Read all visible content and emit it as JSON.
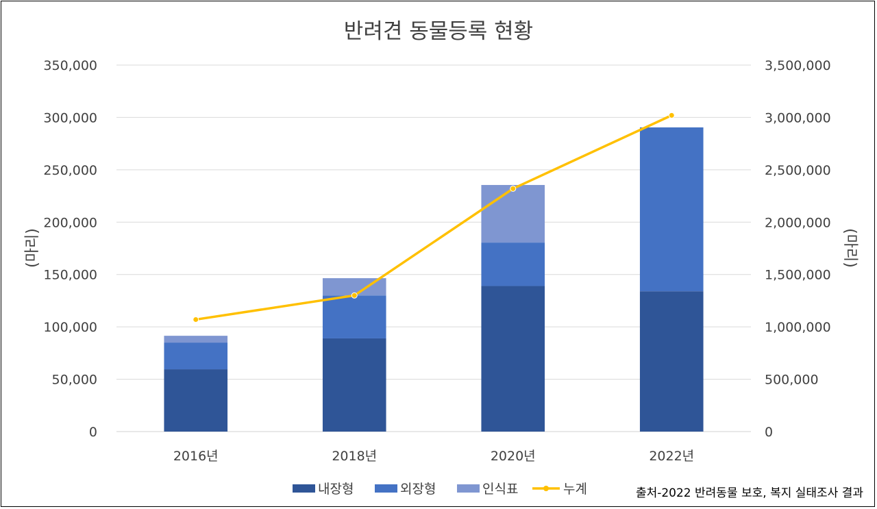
{
  "chart_data": {
    "type": "bar",
    "title": "반려견 동물등록 현황",
    "categories": [
      "2016년",
      "2018년",
      "2020년",
      "2022년"
    ],
    "ylabel": "(마리)",
    "y2label": "(마리)",
    "ylim": [
      0,
      350000
    ],
    "y2lim": [
      0,
      3500000
    ],
    "yticks": [
      "0",
      "50,000",
      "100,000",
      "150,000",
      "200,000",
      "250,000",
      "300,000",
      "350,000"
    ],
    "y2ticks": [
      "0",
      "500,000",
      "1,000,000",
      "1,500,000",
      "2,000,000",
      "2,500,000",
      "3,000,000",
      "3,500,000"
    ],
    "stacked": true,
    "grid": true,
    "legend_position": "bottom",
    "series": [
      {
        "name": "내장형",
        "type": "bar",
        "axis": "left",
        "color": "#2f5597",
        "values": [
          59500,
          89000,
          139000,
          134000
        ]
      },
      {
        "name": "외장형",
        "type": "bar",
        "axis": "left",
        "color": "#4472c4",
        "values": [
          25500,
          41000,
          41500,
          156500
        ]
      },
      {
        "name": "인식표",
        "type": "bar",
        "axis": "left",
        "color": "#7f96d1",
        "values": [
          6500,
          16500,
          55000,
          0
        ]
      },
      {
        "name": "누계",
        "type": "line",
        "axis": "right",
        "color": "#ffc000",
        "values": [
          1070000,
          1300000,
          2320000,
          3020000
        ]
      }
    ],
    "source": "출처-2022 반려동물 보호, 복지 실태조사 결과"
  }
}
